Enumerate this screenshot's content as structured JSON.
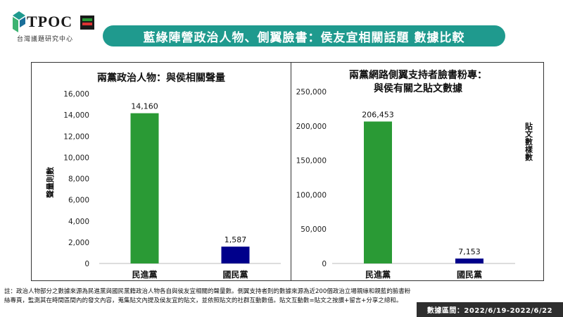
{
  "header": {
    "logo_text": "TPOC",
    "logo_sub": "台灣議題研究中心",
    "banner_title": "藍綠陣營政治人物、側翼臉書：侯友宜相關話題 數據比較"
  },
  "footnote": "註：政治人物部分之數據來源為民進黨與國民黨籍政治人物各自與侯友宜相關的聲量數。側翼支持者則的數據來源為近200個政治立場親綠和親藍的臉書粉絲專頁，監測其在時間區間內的發文內容，蒐集貼文內提及侯友宜的貼文，並依照貼文的社群互動數值。貼文互動數=貼文之按讚+留言+分享之總和。",
  "date_range": "數據區間：2022/6/19-2022/6/22",
  "colors": {
    "banner": "#1f9a8e",
    "dpp": "#2a9a35",
    "kmt": "#00008b"
  },
  "chart_data": [
    {
      "type": "bar",
      "title": "兩黨政治人物：與侯相關聲量",
      "ylabel": "聲量則數",
      "categories": [
        "民進黨",
        "國民黨"
      ],
      "values": [
        14160,
        1587
      ],
      "value_labels": [
        "14,160",
        "1,587"
      ],
      "ylim": [
        0,
        16000
      ],
      "ticks": [
        0,
        2000,
        4000,
        6000,
        8000,
        10000,
        12000,
        14000,
        16000
      ],
      "tick_labels": [
        "0",
        "2,000",
        "4,000",
        "6,000",
        "8,000",
        "10,000",
        "12,000",
        "14,000",
        "16,000"
      ],
      "grid": false
    },
    {
      "type": "bar",
      "title_lines": [
        "兩黨網路側翼支持者臉書粉專：",
        "與侯有關之貼文數據"
      ],
      "ylabel": "貼文數樣數",
      "categories": [
        "民進黨",
        "國民黨"
      ],
      "values": [
        206453,
        7153
      ],
      "value_labels": [
        "206,453",
        "7,153"
      ],
      "ylim": [
        0,
        250000
      ],
      "ticks": [
        0,
        50000,
        100000,
        150000,
        200000,
        250000
      ],
      "tick_labels": [
        "0",
        "50,000",
        "100,000",
        "150,000",
        "200,000",
        "250,000"
      ],
      "grid": false
    }
  ]
}
